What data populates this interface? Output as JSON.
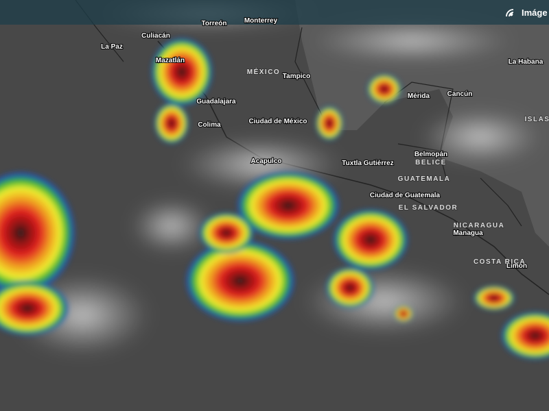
{
  "header": {
    "label": "Imáge"
  },
  "cities": [
    "Torreón",
    "Monterrey",
    "Culiacán",
    "La Paz",
    "Mazatlán",
    "Tampico",
    "Mérida",
    "Cancún",
    "La Habana",
    "Guadalajara",
    "Colima",
    "Ciudad de México",
    "Belmopán",
    "Acapulco",
    "Tuxtla Gutiérrez",
    "Ciudad de Guatemala",
    "Managua",
    "Limón"
  ],
  "countries": [
    "MÉXICO",
    "ISLAS",
    "BELICE",
    "GUATEMALA",
    "EL SALVADOR",
    "NICARAGUA",
    "COSTA RICA"
  ]
}
